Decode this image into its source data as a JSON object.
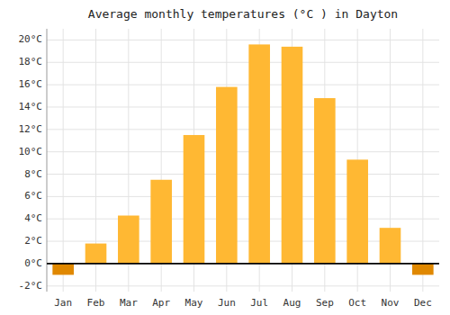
{
  "chart_data": {
    "type": "bar",
    "title": "Average monthly temperatures (°C ) in Dayton",
    "categories": [
      "Jan",
      "Feb",
      "Mar",
      "Apr",
      "May",
      "Jun",
      "Jul",
      "Aug",
      "Sep",
      "Oct",
      "Nov",
      "Dec"
    ],
    "values": [
      -1.0,
      1.8,
      4.3,
      7.5,
      11.5,
      15.8,
      19.6,
      19.4,
      14.8,
      9.3,
      3.2,
      -1.0
    ],
    "colors": [
      "#E08800",
      "#FFB833",
      "#FFB833",
      "#FFB833",
      "#FFB833",
      "#FFB833",
      "#FFB833",
      "#FFB833",
      "#FFB833",
      "#FFB833",
      "#FFB833",
      "#E08800"
    ],
    "ylim": [
      -2.5,
      21.0
    ],
    "yticks": [
      {
        "value": -2,
        "label": "-2°C"
      },
      {
        "value": 0,
        "label": "0°C"
      },
      {
        "value": 2,
        "label": "2°C"
      },
      {
        "value": 4,
        "label": "4°C"
      },
      {
        "value": 6,
        "label": "6°C"
      },
      {
        "value": 8,
        "label": "8°C"
      },
      {
        "value": 10,
        "label": "10°C"
      },
      {
        "value": 12,
        "label": "12°C"
      },
      {
        "value": 14,
        "label": "14°C"
      },
      {
        "value": 16,
        "label": "16°C"
      },
      {
        "value": 18,
        "label": "18°C"
      },
      {
        "value": 20,
        "label": "20°C"
      }
    ],
    "grid": true
  }
}
